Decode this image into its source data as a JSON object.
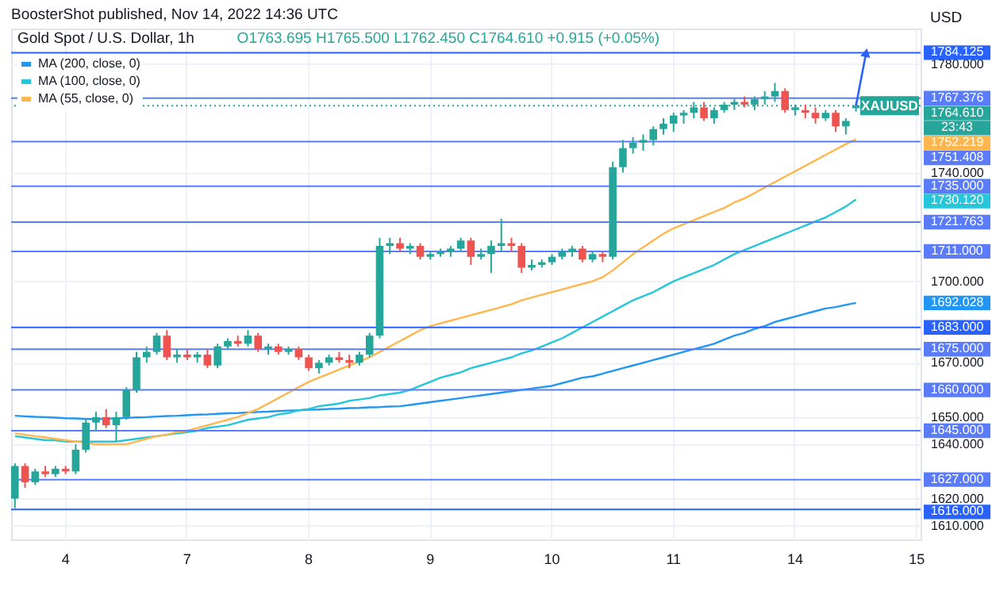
{
  "chart_data": {
    "type": "candlestick",
    "title": "Gold Spot / U.S. Dollar, 1h",
    "ylabel": "USD",
    "annotations": [
      "BoosterShot published, Nov 14, 2022 14:36 UTC",
      "O1763.695 H1765.500 L1762.450 C1764.610 +0.915 (+0.05%)",
      {
        "text": "XAUUSD",
        "y": 1764.61
      },
      "23:43",
      "1692.028",
      "1730.120",
      "1752.219"
    ],
    "categories": [
      null,
      null,
      null,
      null,
      null,
      "4",
      null,
      null,
      null,
      null,
      null,
      null,
      null,
      null,
      null,
      null,
      null,
      "7",
      null,
      null,
      null,
      null,
      null,
      null,
      null,
      null,
      null,
      null,
      null,
      "8",
      null,
      null,
      null,
      null,
      null,
      null,
      null,
      null,
      null,
      null,
      null,
      "9",
      null,
      null,
      null,
      null,
      null,
      null,
      null,
      null,
      null,
      null,
      null,
      "10",
      null,
      null,
      null,
      null,
      null,
      null,
      null,
      null,
      null,
      null,
      null,
      "11",
      null,
      null,
      null,
      null,
      null,
      null,
      null,
      null,
      null,
      null,
      null,
      "14",
      null,
      null,
      null,
      null,
      null,
      null,
      null,
      null,
      null,
      null,
      null,
      "15"
    ],
    "ohlc": [
      [
        1620,
        1633,
        1616.5,
        1632
      ],
      [
        1632,
        1633,
        1624,
        1626
      ],
      [
        1626,
        1631,
        1625,
        1630
      ],
      [
        1630,
        1632,
        1628,
        1629
      ],
      [
        1629,
        1632,
        1628,
        1631
      ],
      [
        1631,
        1632,
        1629,
        1630
      ],
      [
        1630,
        1640,
        1629,
        1638
      ],
      [
        1638,
        1649,
        1637,
        1648
      ],
      [
        1648,
        1652,
        1645,
        1650
      ],
      [
        1650,
        1653,
        1646,
        1647
      ],
      [
        1647,
        1652,
        1641,
        1650
      ],
      [
        1650,
        1661,
        1649,
        1660
      ],
      [
        1660,
        1674,
        1659,
        1672
      ],
      [
        1672,
        1676,
        1670,
        1674
      ],
      [
        1674,
        1681,
        1673,
        1680
      ],
      [
        1680,
        1682,
        1671,
        1672
      ],
      [
        1672,
        1675,
        1670,
        1673
      ],
      [
        1673,
        1675,
        1671,
        1672
      ],
      [
        1672,
        1674,
        1670,
        1673
      ],
      [
        1673,
        1675,
        1668,
        1669
      ],
      [
        1669,
        1677,
        1668,
        1676
      ],
      [
        1676,
        1679,
        1675,
        1678
      ],
      [
        1678,
        1680,
        1676,
        1677
      ],
      [
        1677,
        1682,
        1676,
        1680
      ],
      [
        1680,
        1681,
        1674,
        1675
      ],
      [
        1675,
        1677,
        1673,
        1676
      ],
      [
        1676,
        1677,
        1673,
        1674
      ],
      [
        1674,
        1676,
        1673,
        1675
      ],
      [
        1675,
        1676,
        1671,
        1672
      ],
      [
        1672,
        1673,
        1667,
        1668
      ],
      [
        1668,
        1671,
        1666,
        1670
      ],
      [
        1670,
        1673,
        1669,
        1672
      ],
      [
        1672,
        1674,
        1670,
        1671
      ],
      [
        1671,
        1673,
        1668,
        1670
      ],
      [
        1670,
        1674,
        1669,
        1673
      ],
      [
        1673,
        1681,
        1672,
        1680
      ],
      [
        1680,
        1716,
        1679,
        1713
      ],
      [
        1713,
        1716,
        1710,
        1714
      ],
      [
        1714,
        1716,
        1711,
        1712
      ],
      [
        1712,
        1714,
        1710,
        1713
      ],
      [
        1713,
        1714,
        1708,
        1709
      ],
      [
        1709,
        1711,
        1708,
        1710
      ],
      [
        1710,
        1712,
        1709,
        1711
      ],
      [
        1711,
        1713,
        1709,
        1712
      ],
      [
        1712,
        1716,
        1711,
        1715
      ],
      [
        1715,
        1716,
        1706,
        1709
      ],
      [
        1709,
        1712,
        1708,
        1710
      ],
      [
        1710,
        1715,
        1703,
        1713
      ],
      [
        1713,
        1723,
        1711,
        1714
      ],
      [
        1714,
        1716,
        1711,
        1713
      ],
      [
        1713,
        1714,
        1703,
        1705
      ],
      [
        1705,
        1708,
        1704,
        1706
      ],
      [
        1706,
        1708,
        1705,
        1707
      ],
      [
        1707,
        1710,
        1706,
        1709
      ],
      [
        1709,
        1712,
        1708,
        1711
      ],
      [
        1711,
        1713,
        1709,
        1712
      ],
      [
        1712,
        1713,
        1707,
        1708
      ],
      [
        1708,
        1711,
        1707,
        1710
      ],
      [
        1710,
        1711,
        1707,
        1709
      ],
      [
        1709,
        1744,
        1708,
        1742
      ],
      [
        1742,
        1752,
        1740,
        1749
      ],
      [
        1749,
        1753,
        1747,
        1751
      ],
      [
        1751,
        1754,
        1748,
        1752
      ],
      [
        1752,
        1757,
        1750,
        1756
      ],
      [
        1756,
        1760,
        1754,
        1758
      ],
      [
        1758,
        1762,
        1755,
        1761
      ],
      [
        1761,
        1763,
        1758,
        1762
      ],
      [
        1762,
        1766,
        1760,
        1764
      ],
      [
        1764,
        1766,
        1759,
        1760
      ],
      [
        1760,
        1764,
        1758,
        1763
      ],
      [
        1763,
        1766,
        1762,
        1765
      ],
      [
        1765,
        1767,
        1763,
        1766
      ],
      [
        1766,
        1768,
        1764,
        1765
      ],
      [
        1765,
        1768,
        1763,
        1767
      ],
      [
        1767,
        1770,
        1765,
        1768
      ],
      [
        1768,
        1773,
        1766,
        1770
      ],
      [
        1770,
        1771,
        1762,
        1763
      ],
      [
        1763,
        1765,
        1761,
        1764
      ],
      [
        1763,
        1765,
        1760,
        1762
      ],
      [
        1762,
        1764,
        1758,
        1760
      ],
      [
        1760,
        1763,
        1759,
        1762
      ],
      [
        1762,
        1763,
        1755,
        1757
      ],
      [
        1757,
        1760,
        1754,
        1759
      ],
      [
        1763.695,
        1765.5,
        1762.45,
        1764.61
      ],
      null,
      null,
      null,
      null,
      null,
      null
    ],
    "series": [
      {
        "type": "line",
        "name": "MA (200, close, 0)",
        "color": "#2196f3",
        "values": [
          1650.5,
          1650.3,
          1650.1,
          1650,
          1649.8,
          1649.6,
          1649.5,
          1649.3,
          1649.3,
          1649.4,
          1649.5,
          1649.7,
          1649.9,
          1650,
          1650.2,
          1650.4,
          1650.5,
          1650.7,
          1650.9,
          1651,
          1651.2,
          1651.4,
          1651.5,
          1651.7,
          1651.9,
          1652,
          1652.2,
          1652.4,
          1652.5,
          1652.7,
          1652.8,
          1653,
          1653.1,
          1653.3,
          1653.4,
          1653.6,
          1653.7,
          1653.9,
          1654,
          1654.5,
          1655,
          1655.5,
          1656,
          1656.5,
          1657,
          1657.5,
          1658,
          1658.5,
          1659,
          1659.5,
          1660,
          1660.5,
          1661,
          1661.5,
          1662.5,
          1663.5,
          1664.5,
          1665,
          1666,
          1667,
          1668,
          1669,
          1670,
          1671,
          1672,
          1673,
          1674,
          1675,
          1676,
          1677,
          1678.5,
          1680,
          1681,
          1682.5,
          1683.5,
          1685,
          1686,
          1687,
          1688,
          1689,
          1690,
          1690.5,
          1691.3,
          1692.028,
          null,
          null,
          null,
          null,
          null,
          null
        ]
      },
      {
        "type": "line",
        "name": "MA (100, close, 0)",
        "color": "#26c6da",
        "values": [
          1643,
          1642.5,
          1642,
          1641.5,
          1641.5,
          1641,
          1641,
          1641,
          1641,
          1641,
          1641,
          1641.5,
          1642,
          1642.5,
          1643,
          1643.5,
          1644,
          1644.5,
          1645,
          1646,
          1646.5,
          1647,
          1648,
          1649,
          1649.5,
          1650,
          1651,
          1651.5,
          1652.5,
          1653,
          1654,
          1654.5,
          1655,
          1656,
          1656.5,
          1657,
          1658,
          1658.5,
          1659,
          1660,
          1661.5,
          1663,
          1664.5,
          1665.5,
          1666.5,
          1668,
          1669,
          1670,
          1671,
          1672,
          1673.5,
          1674.5,
          1676,
          1677.5,
          1679,
          1681,
          1683,
          1685,
          1687,
          1689,
          1691,
          1693,
          1694.5,
          1696,
          1698,
          1700,
          1701.5,
          1703,
          1704.5,
          1706,
          1708,
          1710,
          1711.5,
          1713,
          1714.5,
          1716,
          1717.5,
          1719,
          1720.5,
          1722,
          1723.5,
          1725.5,
          1727.5,
          1730.12,
          null,
          null,
          null,
          null,
          null,
          null
        ]
      },
      {
        "type": "line",
        "name": "MA (55, close, 0)",
        "color": "#ffb74d",
        "values": [
          1644,
          1643.5,
          1643,
          1642.5,
          1642,
          1641.5,
          1641,
          1640.5,
          1640,
          1640,
          1640,
          1640,
          1641,
          1642,
          1643,
          1643.5,
          1644.5,
          1645,
          1646,
          1647,
          1648,
          1649,
          1650,
          1651.5,
          1653,
          1655,
          1657,
          1659,
          1661,
          1663,
          1664.5,
          1666,
          1667.5,
          1669,
          1670.5,
          1672,
          1674,
          1676,
          1678,
          1680,
          1682,
          1683.5,
          1684.5,
          1685.5,
          1686.5,
          1687.5,
          1688.5,
          1689.5,
          1690.5,
          1691.5,
          1693,
          1694,
          1695,
          1696,
          1697,
          1698,
          1699,
          1700,
          1701.5,
          1704,
          1707,
          1710,
          1712.5,
          1715,
          1717.5,
          1719.5,
          1721,
          1722.5,
          1724,
          1725.5,
          1727,
          1729,
          1730.5,
          1732.5,
          1734.5,
          1736.5,
          1738.5,
          1740.5,
          1742.5,
          1744.5,
          1746.5,
          1748.5,
          1750.5,
          1752.219,
          null,
          null,
          null,
          null,
          null,
          null
        ]
      }
    ],
    "ref_lines": [
      {
        "axis": "y",
        "value": 1784.125,
        "label": "1784.125",
        "color": "#2962ff"
      },
      {
        "axis": "y",
        "value": 1767.376,
        "label": "1767.376",
        "color": "#5b7cfa"
      },
      {
        "axis": "y",
        "value": 1764.61,
        "label": "1764.610",
        "color": "#26a69a",
        "line_style": "dotted"
      },
      {
        "axis": "y",
        "value": 1751.408,
        "label": "1751.408",
        "color": "#5b7cfa"
      },
      {
        "axis": "y",
        "value": 1735,
        "label": "1735.000",
        "color": "#5b7cfa"
      },
      {
        "axis": "y",
        "value": 1721.763,
        "label": "1721.763",
        "color": "#5b7cfa"
      },
      {
        "axis": "y",
        "value": 1711,
        "label": "1711.000",
        "color": "#5b7cfa"
      },
      {
        "axis": "y",
        "value": 1683,
        "label": "1683.000",
        "color": "#2962ff"
      },
      {
        "axis": "y",
        "value": 1675,
        "label": "1675.000",
        "color": "#5b7cfa"
      },
      {
        "axis": "y",
        "value": 1660,
        "label": "1660.000",
        "color": "#5b7cfa"
      },
      {
        "axis": "y",
        "value": 1645,
        "label": "1645.000",
        "color": "#5b7cfa"
      },
      {
        "axis": "y",
        "value": 1627,
        "label": "1627.000",
        "color": "#5b7cfa"
      },
      {
        "axis": "y",
        "value": 1616,
        "label": "1616.000",
        "color": "#2962ff"
      }
    ],
    "ylim": [
      1605,
      1793
    ],
    "yticks": [
      {
        "value": 1610,
        "label": "1610.000"
      },
      {
        "value": 1620,
        "label": "1620.000"
      },
      {
        "value": 1640,
        "label": "1640.000"
      },
      {
        "value": 1650,
        "label": "1650.000"
      },
      {
        "value": 1670,
        "label": "1670.000"
      },
      {
        "value": 1700,
        "label": "1700.000"
      },
      {
        "value": 1740,
        "label": "1740.000"
      },
      {
        "value": 1780,
        "label": "1780.000"
      }
    ],
    "grid": true,
    "legend": "top left"
  }
}
